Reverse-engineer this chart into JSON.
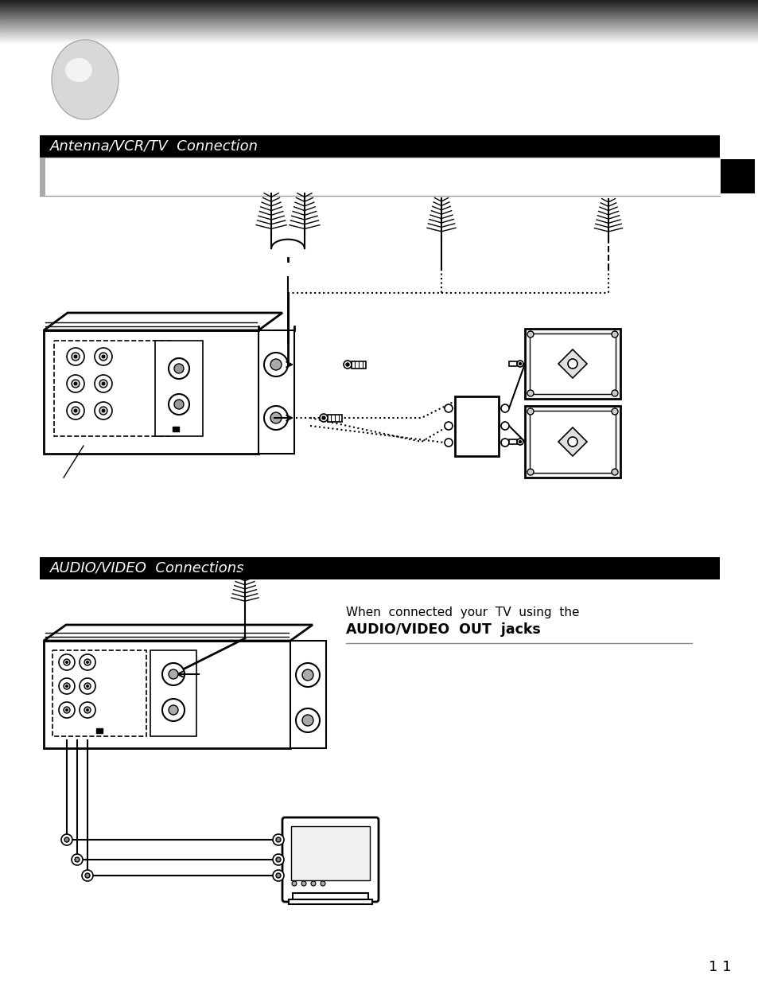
{
  "bg_color": "#ffffff",
  "section1_title": "Antenna/VCR/TV  Connection",
  "section2_title": "AUDIO/VIDEO  Connections",
  "section_bar_color": "#000000",
  "section_bar_text_color": "#ffffff",
  "section_bar_fontsize": 13,
  "tab_color": "#000000",
  "page_number": "1 1",
  "page_num_fontsize": 13,
  "text_line1": "When  connected  your  TV  using  the",
  "text_line2": "AUDIO/VIDEO  OUT  jacks",
  "text_fontsize": 11,
  "text_fontsize2": 12.5
}
